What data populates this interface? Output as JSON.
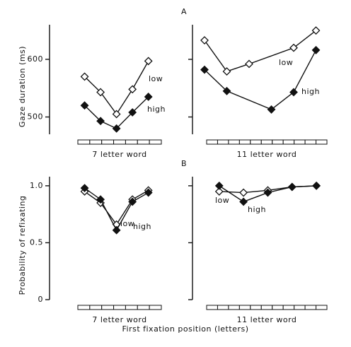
{
  "xlabel": "First fixation position (letters)",
  "chart_data": [
    {
      "type": "line",
      "panel": "A",
      "ylabel": "Gaze duration (ms)",
      "xlabel": "7 letter word",
      "xlim": [
        -1.2,
        6.7
      ],
      "ylim": [
        470,
        660
      ],
      "yticks": [
        500,
        600
      ],
      "ytick_labels": true,
      "series": [
        {
          "name": "low",
          "color": "#111111",
          "fill": "#ffffff",
          "x": [
            1,
            2,
            3,
            4,
            5
          ],
          "values": [
            570,
            543,
            505,
            548,
            597
          ]
        },
        {
          "name": "high",
          "color": "#111111",
          "fill": "#111111",
          "x": [
            1,
            2,
            3,
            4,
            5
          ],
          "values": [
            520,
            493,
            480,
            508,
            535
          ]
        }
      ]
    },
    {
      "type": "line",
      "xlabel": "11 letter word",
      "xlim": [
        0.46,
        7.0
      ],
      "ylim": [
        470,
        660
      ],
      "yticks": [
        500,
        600
      ],
      "ytick_labels": false,
      "series": [
        {
          "name": "low",
          "color": "#111111",
          "fill": "#ffffff",
          "x": [
            1,
            2,
            3,
            5,
            6
          ],
          "values": [
            633,
            579,
            592,
            620,
            650
          ]
        },
        {
          "name": "high",
          "color": "#111111",
          "fill": "#111111",
          "x": [
            1,
            2,
            4,
            5,
            6
          ],
          "values": [
            582,
            545,
            513,
            543,
            616
          ]
        }
      ]
    },
    {
      "type": "line",
      "panel": "B",
      "ylabel": "Probability of refixating",
      "xlabel": "7 letter word",
      "xlim": [
        -1.2,
        6.7
      ],
      "ylim": [
        0,
        1.08
      ],
      "yticks": [
        0,
        0.5,
        {
          "value": 1,
          "label": "1.0"
        }
      ],
      "ytick_labels": true,
      "series": [
        {
          "name": "low",
          "color": "#111111",
          "fill": "#ffffff",
          "x": [
            1,
            2,
            3,
            4,
            5
          ],
          "values": [
            0.95,
            0.85,
            0.66,
            0.88,
            0.96
          ]
        },
        {
          "name": "high",
          "color": "#111111",
          "fill": "#111111",
          "x": [
            1,
            2,
            3,
            4,
            5
          ],
          "values": [
            0.98,
            0.88,
            0.61,
            0.86,
            0.94
          ]
        }
      ]
    },
    {
      "type": "line",
      "xlabel": "11 letter word",
      "xlim": [
        -0.1,
        5.9
      ],
      "ylim": [
        0,
        1.08
      ],
      "yticks": [
        0,
        0.5,
        1
      ],
      "ytick_labels": false,
      "series": [
        {
          "name": "low",
          "color": "#111111",
          "fill": "#ffffff",
          "x": [
            1,
            2,
            3,
            4,
            5
          ],
          "values": [
            0.95,
            0.94,
            0.96,
            0.99,
            1.0
          ]
        },
        {
          "name": "high",
          "color": "#111111",
          "fill": "#111111",
          "x": [
            1,
            2,
            3,
            4,
            5
          ],
          "values": [
            1.0,
            0.86,
            0.94,
            0.99,
            1.0
          ]
        }
      ]
    }
  ]
}
